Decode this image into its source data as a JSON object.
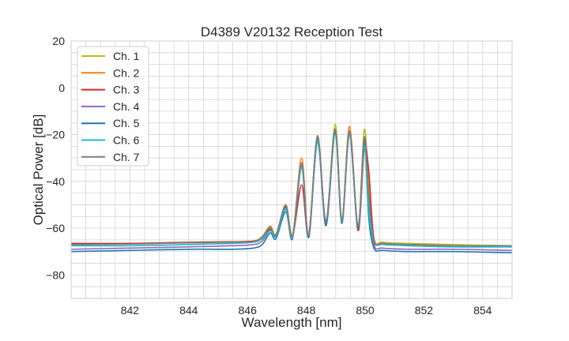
{
  "chart_data": {
    "type": "line",
    "title": "D4389 V20132 Reception Test",
    "xlabel": "Wavelength [nm]",
    "ylabel": "Optical Power [dB]",
    "xlim": [
      840,
      855
    ],
    "ylim": [
      -90,
      20
    ],
    "xticks": [
      842,
      844,
      846,
      848,
      850,
      852,
      854
    ],
    "yticks": [
      20,
      0,
      -20,
      -40,
      -60,
      -80
    ],
    "grid": true,
    "legend_position": "top-left",
    "x": [
      840,
      842,
      844,
      845.5,
      846.2,
      846.5,
      846.77,
      846.97,
      847.3,
      847.53,
      847.84,
      848.08,
      848.38,
      848.67,
      848.98,
      849.21,
      849.47,
      849.76,
      849.97,
      850.12,
      850.3,
      850.6,
      851.5,
      853,
      855
    ],
    "series": [
      {
        "name": "Ch. 1",
        "color": "#bcbd22",
        "values": [
          -67,
          -66.5,
          -66.2,
          -65.8,
          -65.5,
          -63.5,
          -59,
          -62.5,
          -50,
          -63,
          -33,
          -63,
          -21,
          -57,
          -15.6,
          -56,
          -18.5,
          -59,
          -18,
          -40,
          -64.5,
          -66,
          -66.5,
          -67,
          -67.5
        ]
      },
      {
        "name": "Ch. 2",
        "color": "#ff7f0e",
        "values": [
          -66.8,
          -66.8,
          -66.3,
          -66,
          -65.7,
          -64,
          -60,
          -62.8,
          -50.5,
          -64,
          -30,
          -64,
          -21,
          -58,
          -18.5,
          -57,
          -16.5,
          -60,
          -22,
          -45,
          -65,
          -66.5,
          -67,
          -67.5,
          -68
        ]
      },
      {
        "name": "Ch. 3",
        "color": "#d62728",
        "values": [
          -66.5,
          -66.5,
          -66,
          -65.8,
          -65.5,
          -64.2,
          -60.5,
          -63,
          -51,
          -63.5,
          -41.5,
          -63,
          -21,
          -57,
          -18,
          -57,
          -18.5,
          -61,
          -26,
          -35,
          -64.5,
          -66.5,
          -67,
          -67.5,
          -68
        ]
      },
      {
        "name": "Ch. 4",
        "color": "#9467bd",
        "values": [
          -69,
          -68.5,
          -68,
          -67.5,
          -67,
          -65.5,
          -61,
          -63.5,
          -52,
          -64,
          -33,
          -63.5,
          -22,
          -58,
          -19,
          -57,
          -19.5,
          -60,
          -24,
          -48,
          -67,
          -68.5,
          -69,
          -69,
          -69.5
        ]
      },
      {
        "name": "Ch. 5",
        "color": "#1f77b4",
        "values": [
          -70,
          -69.5,
          -69,
          -69,
          -68.5,
          -67,
          -62,
          -64.5,
          -53,
          -64.5,
          -34,
          -64,
          -23,
          -59,
          -19.5,
          -58,
          -20,
          -60,
          -22,
          -55,
          -68.5,
          -69.5,
          -70,
          -70,
          -70.5
        ]
      },
      {
        "name": "Ch. 6",
        "color": "#17becf",
        "values": [
          -67.5,
          -67.5,
          -67,
          -66.5,
          -66,
          -64.5,
          -61,
          -63.5,
          -51.5,
          -64,
          -34,
          -63,
          -23,
          -57,
          -20,
          -57,
          -20,
          -59,
          -25,
          -52,
          -66,
          -67,
          -67.5,
          -68,
          -68
        ]
      },
      {
        "name": "Ch. 7",
        "color": "#7f7f7f",
        "values": [
          -67,
          -66.8,
          -66.2,
          -66,
          -65.7,
          -63.8,
          -59.5,
          -62.8,
          -50,
          -63.5,
          -32,
          -63,
          -20.5,
          -57,
          -17.5,
          -56.5,
          -18.5,
          -59,
          -21,
          -45,
          -65.5,
          -66.5,
          -67,
          -67.5,
          -67.5
        ]
      }
    ]
  }
}
